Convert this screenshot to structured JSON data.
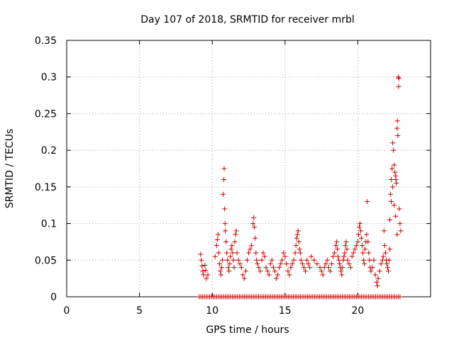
{
  "chart_data": {
    "type": "scatter",
    "title": "Day 107 of 2018, SRMTID for receiver mrbl",
    "xlabel": "GPS time / hours",
    "ylabel": "SRMTID / TECUs",
    "xlim": [
      0,
      25
    ],
    "ylim": [
      0,
      0.35
    ],
    "x_ticks": [
      0,
      5,
      10,
      15,
      20
    ],
    "x_tick_labels": [
      "0",
      "5",
      "10",
      "15",
      "20"
    ],
    "y_ticks": [
      0,
      0.05,
      0.1,
      0.15,
      0.2,
      0.25,
      0.3,
      0.35
    ],
    "y_tick_labels": [
      "0",
      "0.05",
      "0.1",
      "0.15",
      "0.2",
      "0.25",
      "0.3",
      "0.35"
    ],
    "grid": true,
    "marker": "+",
    "colors": {
      "points": "#cc0000",
      "grid": "#a0a0a0",
      "axes": "#000000"
    },
    "series": [
      {
        "name": "SRMTID",
        "points": [
          [
            9.2,
            0.058
          ],
          [
            9.25,
            0.05
          ],
          [
            9.3,
            0.042
          ],
          [
            9.35,
            0.035
          ],
          [
            9.4,
            0.03
          ],
          [
            9.5,
            0.043
          ],
          [
            9.55,
            0.036
          ],
          [
            9.6,
            0.025
          ],
          [
            9.7,
            0.03
          ],
          [
            10.2,
            0.055
          ],
          [
            10.3,
            0.07
          ],
          [
            10.35,
            0.078
          ],
          [
            10.4,
            0.085
          ],
          [
            10.45,
            0.06
          ],
          [
            10.5,
            0.045
          ],
          [
            10.55,
            0.035
          ],
          [
            10.6,
            0.03
          ],
          [
            10.65,
            0.04
          ],
          [
            10.7,
            0.05
          ],
          [
            10.75,
            0.14
          ],
          [
            10.8,
            0.16
          ],
          [
            10.82,
            0.175
          ],
          [
            10.85,
            0.12
          ],
          [
            10.88,
            0.1
          ],
          [
            10.9,
            0.09
          ],
          [
            10.95,
            0.075
          ],
          [
            11.0,
            0.06
          ],
          [
            11.05,
            0.05
          ],
          [
            11.1,
            0.04
          ],
          [
            11.15,
            0.035
          ],
          [
            11.2,
            0.045
          ],
          [
            11.25,
            0.055
          ],
          [
            11.3,
            0.065
          ],
          [
            11.35,
            0.07
          ],
          [
            11.4,
            0.06
          ],
          [
            11.45,
            0.05
          ],
          [
            11.5,
            0.04
          ],
          [
            11.55,
            0.075
          ],
          [
            11.6,
            0.085
          ],
          [
            11.65,
            0.09
          ],
          [
            11.7,
            0.06
          ],
          [
            11.8,
            0.05
          ],
          [
            11.9,
            0.045
          ],
          [
            12.0,
            0.04
          ],
          [
            12.1,
            0.03
          ],
          [
            12.2,
            0.025
          ],
          [
            12.3,
            0.035
          ],
          [
            12.4,
            0.05
          ],
          [
            12.5,
            0.06
          ],
          [
            12.6,
            0.065
          ],
          [
            12.7,
            0.07
          ],
          [
            12.8,
            0.1
          ],
          [
            12.85,
            0.108
          ],
          [
            12.9,
            0.095
          ],
          [
            12.95,
            0.08
          ],
          [
            13.0,
            0.06
          ],
          [
            13.05,
            0.05
          ],
          [
            13.1,
            0.045
          ],
          [
            13.2,
            0.04
          ],
          [
            13.3,
            0.035
          ],
          [
            13.4,
            0.05
          ],
          [
            13.5,
            0.06
          ],
          [
            13.6,
            0.055
          ],
          [
            13.7,
            0.04
          ],
          [
            13.8,
            0.035
          ],
          [
            13.9,
            0.03
          ],
          [
            14.0,
            0.045
          ],
          [
            14.1,
            0.05
          ],
          [
            14.2,
            0.04
          ],
          [
            14.3,
            0.035
          ],
          [
            14.4,
            0.025
          ],
          [
            14.5,
            0.03
          ],
          [
            14.6,
            0.04
          ],
          [
            14.7,
            0.045
          ],
          [
            14.8,
            0.05
          ],
          [
            14.9,
            0.06
          ],
          [
            15.0,
            0.055
          ],
          [
            15.1,
            0.045
          ],
          [
            15.2,
            0.035
          ],
          [
            15.3,
            0.03
          ],
          [
            15.4,
            0.04
          ],
          [
            15.5,
            0.045
          ],
          [
            15.6,
            0.05
          ],
          [
            15.7,
            0.06
          ],
          [
            15.75,
            0.07
          ],
          [
            15.8,
            0.08
          ],
          [
            15.85,
            0.085
          ],
          [
            15.9,
            0.09
          ],
          [
            15.95,
            0.075
          ],
          [
            16.0,
            0.065
          ],
          [
            16.05,
            0.06
          ],
          [
            16.1,
            0.05
          ],
          [
            16.2,
            0.045
          ],
          [
            16.3,
            0.04
          ],
          [
            16.4,
            0.035
          ],
          [
            16.5,
            0.05
          ],
          [
            16.6,
            0.045
          ],
          [
            16.7,
            0.04
          ],
          [
            16.8,
            0.055
          ],
          [
            17.0,
            0.05
          ],
          [
            17.2,
            0.045
          ],
          [
            17.4,
            0.04
          ],
          [
            17.5,
            0.035
          ],
          [
            17.6,
            0.03
          ],
          [
            17.7,
            0.04
          ],
          [
            17.8,
            0.045
          ],
          [
            17.9,
            0.05
          ],
          [
            18.0,
            0.04
          ],
          [
            18.1,
            0.035
          ],
          [
            18.2,
            0.045
          ],
          [
            18.3,
            0.055
          ],
          [
            18.4,
            0.06
          ],
          [
            18.5,
            0.07
          ],
          [
            18.55,
            0.075
          ],
          [
            18.6,
            0.065
          ],
          [
            18.65,
            0.055
          ],
          [
            18.7,
            0.05
          ],
          [
            18.75,
            0.045
          ],
          [
            18.8,
            0.04
          ],
          [
            18.85,
            0.035
          ],
          [
            18.9,
            0.03
          ],
          [
            18.95,
            0.04
          ],
          [
            19.0,
            0.05
          ],
          [
            19.05,
            0.055
          ],
          [
            19.1,
            0.06
          ],
          [
            19.15,
            0.07
          ],
          [
            19.2,
            0.075
          ],
          [
            19.25,
            0.065
          ],
          [
            19.3,
            0.05
          ],
          [
            19.4,
            0.045
          ],
          [
            19.5,
            0.04
          ],
          [
            19.6,
            0.055
          ],
          [
            19.7,
            0.06
          ],
          [
            19.8,
            0.065
          ],
          [
            19.9,
            0.07
          ],
          [
            20.0,
            0.075
          ],
          [
            20.05,
            0.085
          ],
          [
            20.1,
            0.095
          ],
          [
            20.15,
            0.1
          ],
          [
            20.2,
            0.09
          ],
          [
            20.25,
            0.08
          ],
          [
            20.3,
            0.07
          ],
          [
            20.35,
            0.06
          ],
          [
            20.4,
            0.05
          ],
          [
            20.45,
            0.045
          ],
          [
            20.5,
            0.065
          ],
          [
            20.55,
            0.075
          ],
          [
            20.6,
            0.085
          ],
          [
            20.65,
            0.13
          ],
          [
            20.7,
            0.075
          ],
          [
            20.75,
            0.06
          ],
          [
            20.8,
            0.05
          ],
          [
            20.85,
            0.04
          ],
          [
            20.9,
            0.035
          ],
          [
            21.0,
            0.04
          ],
          [
            21.1,
            0.05
          ],
          [
            21.2,
            0.03
          ],
          [
            21.3,
            0.02
          ],
          [
            21.35,
            0.015
          ],
          [
            21.4,
            0.025
          ],
          [
            21.5,
            0.035
          ],
          [
            21.6,
            0.045
          ],
          [
            21.7,
            0.05
          ],
          [
            21.75,
            0.055
          ],
          [
            21.8,
            0.09
          ],
          [
            21.85,
            0.07
          ],
          [
            21.9,
            0.06
          ],
          [
            21.95,
            0.05
          ],
          [
            22.0,
            0.045
          ],
          [
            22.05,
            0.04
          ],
          [
            22.1,
            0.035
          ],
          [
            22.15,
            0.05
          ],
          [
            22.2,
            0.065
          ],
          [
            22.25,
            0.14
          ],
          [
            22.3,
            0.16
          ],
          [
            22.35,
            0.175
          ],
          [
            22.4,
            0.21
          ],
          [
            22.45,
            0.2
          ],
          [
            22.5,
            0.18
          ],
          [
            22.55,
            0.17
          ],
          [
            22.6,
            0.165
          ],
          [
            22.62,
            0.16
          ],
          [
            22.65,
            0.155
          ],
          [
            22.7,
            0.23
          ],
          [
            22.72,
            0.24
          ],
          [
            22.75,
            0.22
          ],
          [
            22.78,
            0.3
          ],
          [
            22.8,
            0.287
          ],
          [
            22.82,
            0.298
          ],
          [
            22.85,
            0.12
          ],
          [
            22.9,
            0.1
          ],
          [
            22.95,
            0.09
          ],
          [
            22.6,
            0.11
          ],
          [
            22.7,
            0.085
          ],
          [
            22.5,
            0.125
          ],
          [
            22.4,
            0.15
          ],
          [
            22.3,
            0.13
          ],
          [
            22.2,
            0.105
          ]
        ]
      }
    ],
    "zero_band": {
      "y": 0,
      "x_start": 9.1,
      "x_end": 22.9,
      "step": 0.12
    }
  }
}
